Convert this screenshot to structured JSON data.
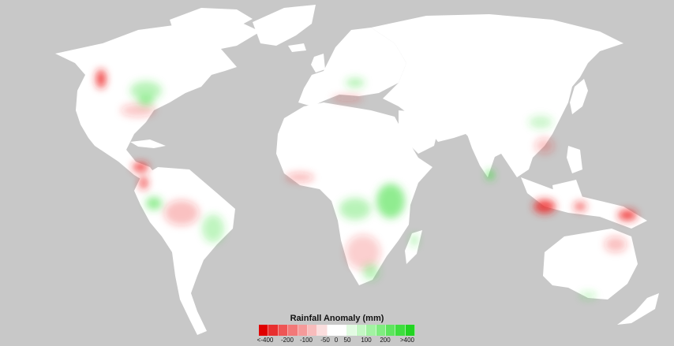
{
  "map": {
    "background_color": "#c8c8c8",
    "land_color": "#ffffff",
    "dry_color": "#ee2222",
    "wet_color": "#33dd33"
  },
  "legend": {
    "title": "Rainfall Anomaly (mm)",
    "swatches": [
      "#e00000",
      "#e83030",
      "#ee5555",
      "#f27878",
      "#f59a9a",
      "#f8bcbc",
      "#fbdede",
      "#ffffff",
      "#ffffff",
      "#e2fbe2",
      "#c4f7c4",
      "#a2f2a2",
      "#80ec80",
      "#5ee55e",
      "#3ede3e",
      "#22d422"
    ],
    "ticks": [
      "<-400",
      "-200",
      "-100",
      "-50",
      "0",
      "50",
      "100",
      "200",
      ">400"
    ]
  }
}
